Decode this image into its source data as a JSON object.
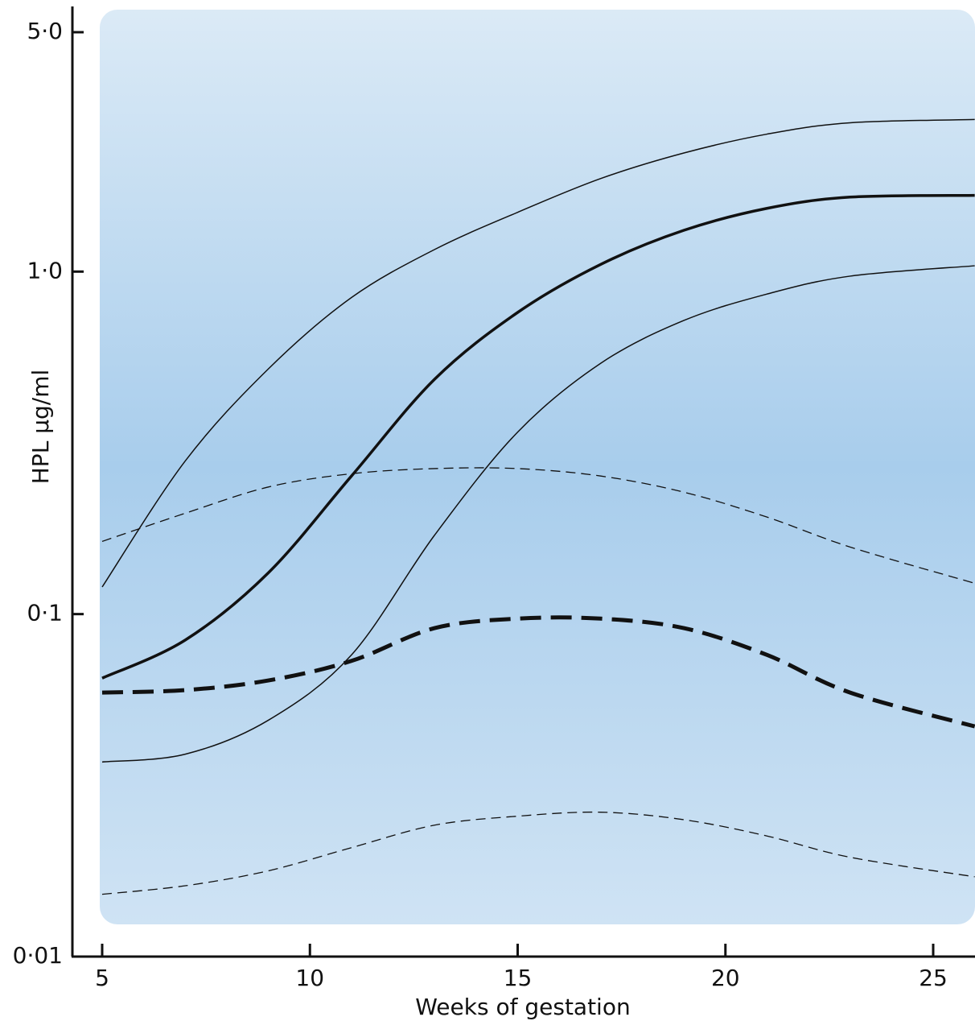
{
  "chart_data": {
    "type": "line",
    "y_label": "HPL µg/ml",
    "x_label": "Weeks of gestation",
    "log_y": true,
    "xlim": [
      5,
      26.2
    ],
    "ylim": [
      0.01,
      5
    ],
    "xticks": [
      5,
      10,
      15,
      20,
      25
    ],
    "yticks": [
      {
        "value": 0.01,
        "label": "0·01"
      },
      {
        "value": 0.1,
        "label": "0·1"
      },
      {
        "value": 1,
        "label": "1·0"
      },
      {
        "value": 5,
        "label": "5·0"
      }
    ],
    "x": [
      5,
      7,
      9,
      11,
      13,
      15,
      17,
      19,
      21,
      23,
      26
    ],
    "series": [
      {
        "color": "#111111",
        "width": 1.5,
        "dashed": false,
        "values": [
          0.12,
          0.28,
          0.52,
          0.84,
          1.16,
          1.49,
          1.87,
          2.22,
          2.52,
          2.72,
          2.78
        ]
      },
      {
        "color": "#111111",
        "width": 3.5,
        "dashed": false,
        "values": [
          0.065,
          0.084,
          0.132,
          0.253,
          0.485,
          0.76,
          1.05,
          1.32,
          1.53,
          1.65,
          1.67
        ]
      },
      {
        "color": "#111111",
        "width": 1.5,
        "dashed": false,
        "values": [
          0.037,
          0.039,
          0.049,
          0.076,
          0.17,
          0.34,
          0.54,
          0.72,
          0.86,
          0.97,
          1.04
        ]
      },
      {
        "color": "#111111",
        "width": 1.3,
        "dashed": true,
        "values": [
          0.163,
          0.197,
          0.235,
          0.257,
          0.266,
          0.266,
          0.253,
          0.227,
          0.192,
          0.157,
          0.123
        ]
      },
      {
        "color": "#111111",
        "width": 5,
        "dashed": true,
        "values": [
          0.059,
          0.06,
          0.064,
          0.073,
          0.091,
          0.097,
          0.097,
          0.091,
          0.076,
          0.059,
          0.047
        ]
      },
      {
        "color": "#111111",
        "width": 1.3,
        "dashed": true,
        "values": [
          0.0152,
          0.0161,
          0.0178,
          0.0208,
          0.0242,
          0.0257,
          0.0264,
          0.0251,
          0.0225,
          0.0195,
          0.0171
        ]
      }
    ]
  }
}
